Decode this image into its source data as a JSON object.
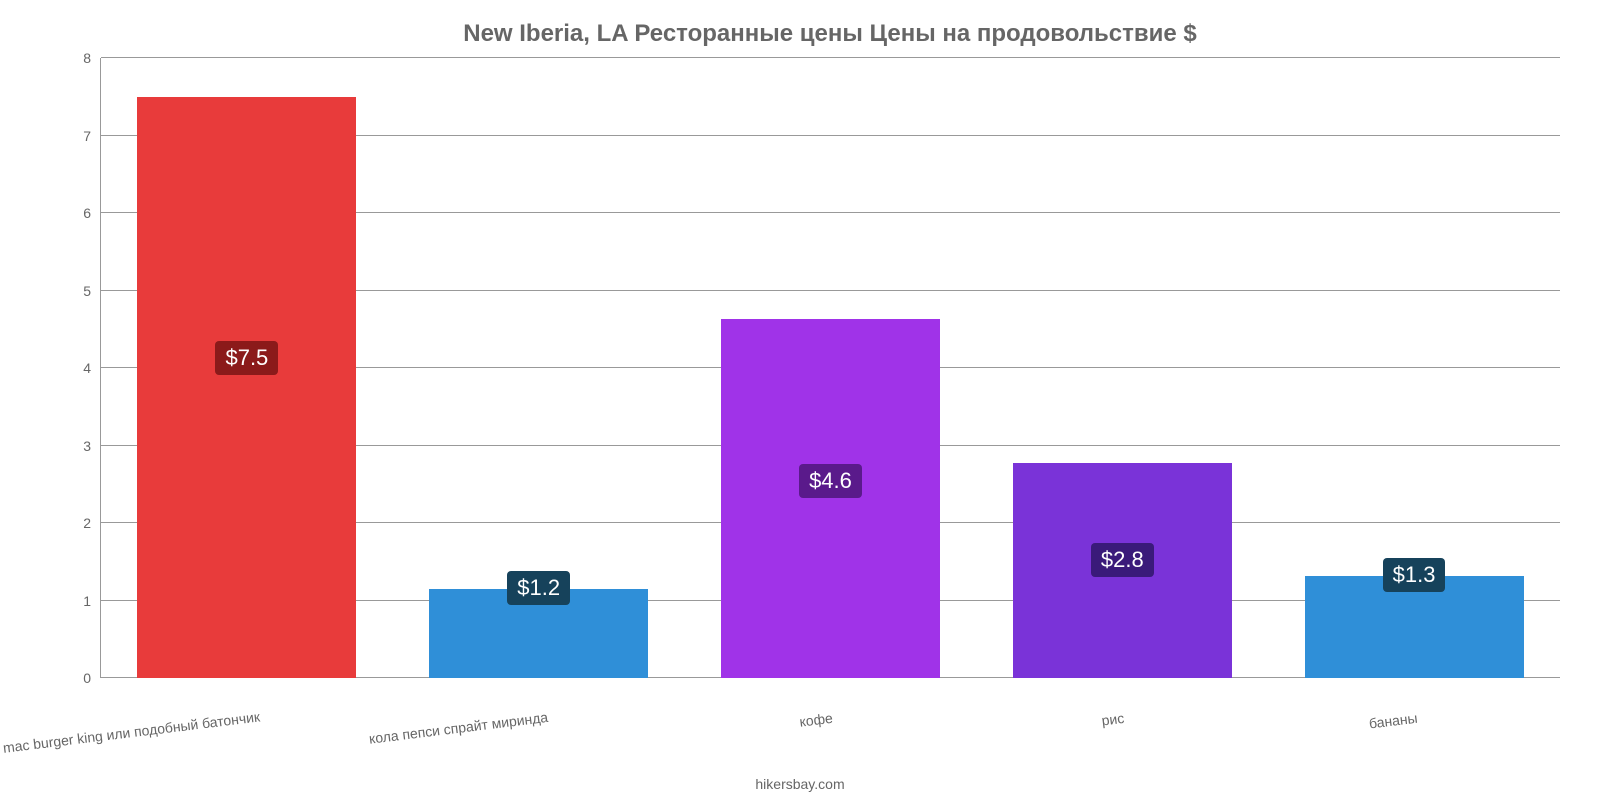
{
  "chart": {
    "type": "bar",
    "title": "New Iberia, LA Ресторанные цены Цены на продовольствие $",
    "title_color": "#666666",
    "title_fontsize": 24,
    "background_color": "#ffffff",
    "grid_color": "#999999",
    "axis_color": "#666666",
    "ylim": [
      0,
      8
    ],
    "yticks": [
      0,
      1,
      2,
      3,
      4,
      5,
      6,
      7,
      8
    ],
    "bar_width": 0.75,
    "categories": [
      "mac burger king или подобный батончик",
      "кола пепси спрайт миринда",
      "кофе",
      "рис",
      "бананы"
    ],
    "values": [
      7.5,
      1.15,
      4.63,
      2.77,
      1.32
    ],
    "value_labels": [
      "$7.5",
      "$1.2",
      "$4.6",
      "$2.8",
      "$1.3"
    ],
    "bar_colors": [
      "#e83b3b",
      "#2f8fd8",
      "#a033e8",
      "#7a33d8",
      "#2f8fd8"
    ],
    "label_bg_colors": [
      "#8b1a1a",
      "#16425b",
      "#5a1a8b",
      "#3a1a7a",
      "#16425b"
    ],
    "label_fontsize": 22,
    "xlabel_fontsize": 14,
    "xlabel_color": "#666666",
    "xlabel_rotate_deg": -7,
    "attribution": "hikersbay.com"
  }
}
